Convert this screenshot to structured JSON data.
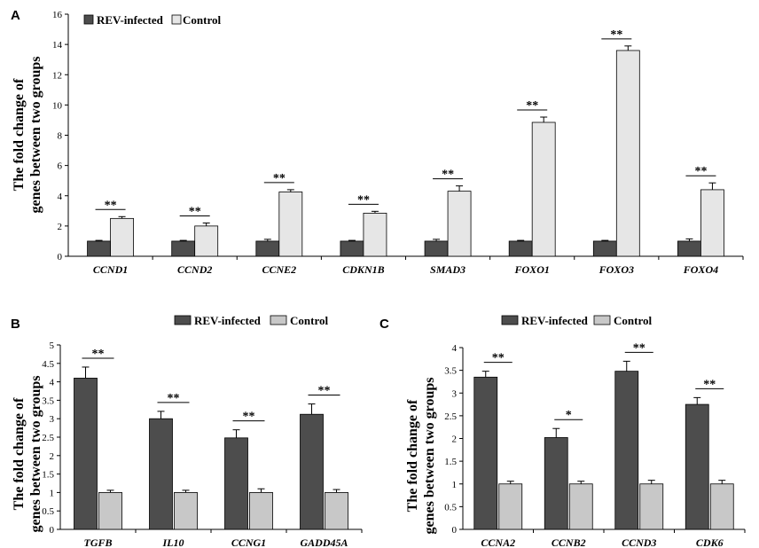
{
  "colors": {
    "infected": "#4d4d4d",
    "control_a": "#e6e6e6",
    "control_bc": "#c8c8c8"
  },
  "chart_data": [
    {
      "type": "bar",
      "panel": "A",
      "ylabel": "The fold change of genes between two groups",
      "ylim": [
        0,
        16
      ],
      "yticks": [
        0,
        2,
        4,
        6,
        8,
        10,
        12,
        14,
        16
      ],
      "legend_position": "top-left",
      "categories": [
        "CCND1",
        "CCND2",
        "CCNE2",
        "CDKN1B",
        "SMAD3",
        "FOXO1",
        "FOXO3",
        "FOXO4"
      ],
      "series": [
        {
          "name": "REV-infected",
          "values": [
            1,
            1,
            1,
            1,
            1,
            1,
            1,
            1
          ],
          "errors": [
            0.05,
            0.05,
            0.12,
            0.05,
            0.12,
            0.05,
            0.05,
            0.15
          ]
        },
        {
          "name": "Control",
          "values": [
            2.5,
            2.0,
            4.25,
            2.85,
            4.3,
            8.85,
            13.6,
            4.4
          ],
          "errors": [
            0.12,
            0.2,
            0.15,
            0.12,
            0.35,
            0.35,
            0.3,
            0.45
          ]
        }
      ],
      "significance": [
        "**",
        "**",
        "**",
        "**",
        "**",
        "**",
        "**",
        "**"
      ]
    },
    {
      "type": "bar",
      "panel": "B",
      "ylabel": "The fold change of genes between two groups",
      "ylim": [
        0,
        5
      ],
      "yticks": [
        0,
        0.5,
        1,
        1.5,
        2,
        2.5,
        3,
        3.5,
        4,
        4.5,
        5
      ],
      "legend_position": "top",
      "categories": [
        "TGFB",
        "IL10",
        "CCNG1",
        "GADD45A"
      ],
      "series": [
        {
          "name": "REV-infected",
          "values": [
            4.1,
            3.0,
            2.48,
            3.12
          ],
          "errors": [
            0.3,
            0.2,
            0.22,
            0.28
          ]
        },
        {
          "name": "Control",
          "values": [
            1,
            1,
            1,
            1
          ],
          "errors": [
            0.06,
            0.06,
            0.1,
            0.08
          ]
        }
      ],
      "significance": [
        "**",
        "**",
        "**",
        "**"
      ]
    },
    {
      "type": "bar",
      "panel": "C",
      "ylabel": "The fold change of genes between two groups",
      "ylim": [
        0,
        4
      ],
      "yticks": [
        0,
        0.5,
        1,
        1.5,
        2,
        2.5,
        3,
        3.5,
        4
      ],
      "legend_position": "top",
      "categories": [
        "CCNA2",
        "CCNB2",
        "CCND3",
        "CDK6"
      ],
      "series": [
        {
          "name": "REV-infected",
          "values": [
            3.35,
            2.02,
            3.48,
            2.75
          ],
          "errors": [
            0.13,
            0.2,
            0.22,
            0.15
          ]
        },
        {
          "name": "Control",
          "values": [
            1,
            1,
            1,
            1
          ],
          "errors": [
            0.06,
            0.06,
            0.08,
            0.08
          ]
        }
      ],
      "significance": [
        "**",
        "*",
        "**",
        "**"
      ]
    }
  ]
}
